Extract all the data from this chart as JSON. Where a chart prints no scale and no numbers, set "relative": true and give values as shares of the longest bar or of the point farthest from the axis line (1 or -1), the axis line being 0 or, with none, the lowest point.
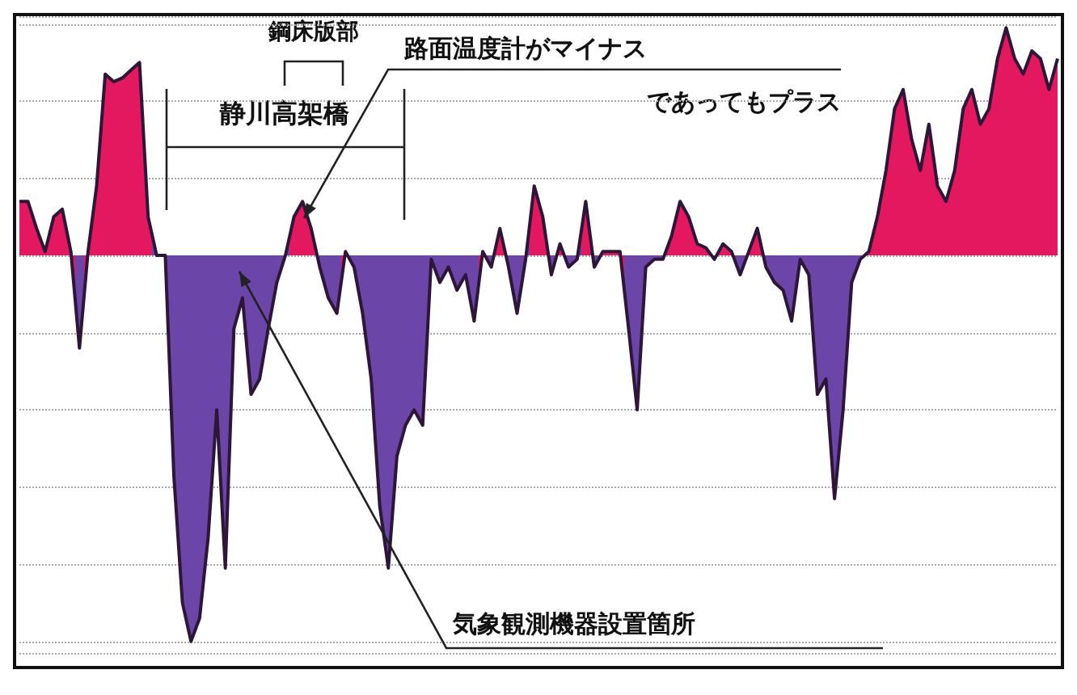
{
  "chart_data": {
    "type": "area",
    "relative": true,
    "grid": "y",
    "categories": [
      null,
      null,
      null,
      null,
      null,
      null,
      null,
      null,
      null,
      null,
      null,
      null,
      null,
      null,
      null,
      null,
      null,
      null,
      null,
      null,
      null,
      null,
      null,
      null,
      null,
      null,
      null,
      null,
      null,
      null,
      null,
      null,
      null,
      null,
      null,
      null,
      null,
      null,
      null,
      null,
      null,
      null,
      null,
      null,
      null,
      null,
      null,
      null,
      null,
      null,
      null,
      null,
      null,
      null,
      null,
      null,
      null,
      null,
      null,
      null,
      null,
      null,
      null,
      null,
      null,
      null,
      null,
      null,
      null,
      null,
      null,
      null,
      null,
      null,
      null,
      null,
      null,
      null,
      null,
      null,
      null,
      null,
      null,
      null,
      null,
      null,
      null,
      null,
      null,
      null,
      null,
      null,
      null,
      null,
      null,
      null,
      null,
      null,
      null,
      null,
      null,
      null,
      null,
      null,
      null,
      null,
      null,
      null,
      null,
      null,
      null,
      null,
      null,
      null,
      null,
      null,
      null,
      null,
      null,
      null,
      null,
      null
    ],
    "series": [
      {
        "color": "#2e1638",
        "values": [
          0.14,
          0.14,
          0.07,
          0.01,
          0.1,
          0.12,
          0.01,
          -0.24,
          0.01,
          0.18,
          0.47,
          0.45,
          0.46,
          0.48,
          0.5,
          0.1,
          0,
          0,
          -0.57,
          -0.9,
          -1,
          -0.94,
          -0.73,
          -0.4,
          -0.81,
          -0.19,
          -0.11,
          -0.36,
          -0.32,
          -0.19,
          -0.07,
          0,
          0.1,
          0.14,
          0.07,
          -0.03,
          -0.11,
          -0.15,
          0.01,
          -0.03,
          -0.15,
          -0.32,
          -0.65,
          -0.81,
          -0.52,
          -0.44,
          -0.4,
          -0.44,
          -0.01,
          -0.07,
          -0.03,
          -0.09,
          -0.05,
          -0.17,
          0.01,
          -0.03,
          0.07,
          -0.03,
          -0.15,
          -0.01,
          0.18,
          0.1,
          -0.05,
          0.03,
          -0.03,
          -0.01,
          0.14,
          -0.03,
          0.01,
          0.01,
          0.01,
          -0.19,
          -0.4,
          -0.03,
          -0.01,
          -0.01,
          0.05,
          0.14,
          0.1,
          0.03,
          0.02,
          -0.01,
          0.03,
          0.01,
          -0.05,
          0.01,
          0.07,
          -0.03,
          -0.07,
          -0.09,
          -0.17,
          -0.01,
          -0.05,
          -0.36,
          -0.32,
          -0.63,
          -0.4,
          -0.07,
          -0.01,
          0.01,
          0.1,
          0.22,
          0.38,
          0.43,
          0.3,
          0.22,
          0.34,
          0.18,
          0.14,
          0.22,
          0.38,
          0.43,
          0.34,
          0.38,
          0.51,
          0.59,
          0.51,
          0.47,
          0.53,
          0.51,
          0.43,
          0.51
        ],
        "colors": [
          "#e3185e",
          "#e3185e",
          "#e3185e",
          "#e3185e",
          "#e3185e",
          "#e3185e",
          "#e3185e",
          "#6b46a8",
          "#e3185e",
          "#e3185e",
          "#e3185e",
          "#e3185e",
          "#e3185e",
          "#e3185e",
          "#e3185e",
          "#e3185e",
          "#6b46a8",
          "#6b46a8",
          "#6b46a8",
          "#6b46a8",
          "#6b46a8",
          "#6b46a8",
          "#6b46a8",
          "#6b46a8",
          "#6b46a8",
          "#6b46a8",
          "#6b46a8",
          "#6b46a8",
          "#6b46a8",
          "#6b46a8",
          "#6b46a8",
          "#6b46a8",
          "#e3185e",
          "#e3185e",
          "#e3185e",
          "#6b46a8",
          "#6b46a8",
          "#6b46a8",
          "#e3185e",
          "#6b46a8",
          "#6b46a8",
          "#6b46a8",
          "#6b46a8",
          "#6b46a8",
          "#6b46a8",
          "#6b46a8",
          "#6b46a8",
          "#6b46a8",
          "#6b46a8",
          "#6b46a8",
          "#6b46a8",
          "#6b46a8",
          "#6b46a8",
          "#6b46a8",
          "#e3185e",
          "#6b46a8",
          "#e3185e",
          "#6b46a8",
          "#6b46a8",
          "#6b46a8",
          "#e3185e",
          "#e3185e",
          "#6b46a8",
          "#e3185e",
          "#6b46a8",
          "#6b46a8",
          "#e3185e",
          "#6b46a8",
          "#e3185e",
          "#e3185e",
          "#e3185e",
          "#6b46a8",
          "#6b46a8",
          "#6b46a8",
          "#6b46a8",
          "#6b46a8",
          "#e3185e",
          "#e3185e",
          "#e3185e",
          "#e3185e",
          "#e3185e",
          "#6b46a8",
          "#e3185e",
          "#e3185e",
          "#6b46a8",
          "#e3185e",
          "#e3185e",
          "#6b46a8",
          "#6b46a8",
          "#6b46a8",
          "#6b46a8",
          "#6b46a8",
          "#6b46a8",
          "#6b46a8",
          "#6b46a8",
          "#6b46a8",
          "#6b46a8",
          "#6b46a8",
          "#6b46a8",
          "#e3185e",
          "#e3185e",
          "#e3185e",
          "#e3185e",
          "#e3185e",
          "#e3185e",
          "#e3185e",
          "#e3185e",
          "#e3185e",
          "#e3185e",
          "#e3185e",
          "#e3185e",
          "#e3185e",
          "#e3185e",
          "#e3185e",
          "#e3185e",
          "#e3185e",
          "#e3185e",
          "#e3185e",
          "#e3185e",
          "#e3185e",
          "#e3185e",
          "#e3185e"
        ]
      }
    ],
    "annotations": [
      "鋼床版部",
      "静川高架橋",
      "路面温度計がマイナス",
      "であってもプラス",
      "気象観測機器設置箇所"
    ]
  }
}
